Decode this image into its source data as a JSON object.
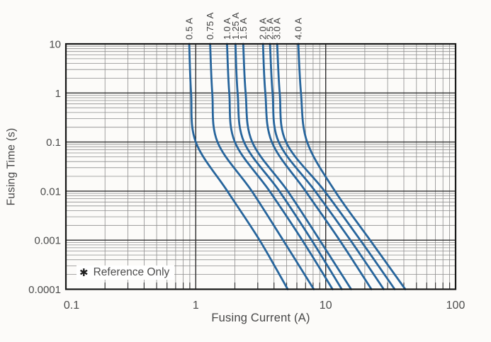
{
  "chart_data": {
    "type": "line",
    "title": "",
    "xlabel": "Fusing Current (A)",
    "ylabel": "Fusing Time (s)",
    "x_scale": "log",
    "y_scale": "log",
    "xlim": [
      0.1,
      100
    ],
    "ylim": [
      0.0001,
      10
    ],
    "x_tick_values": [
      0.1,
      1,
      10,
      100
    ],
    "x_tick_labels": [
      "0.1",
      "1",
      "10",
      "100"
    ],
    "y_tick_values": [
      10,
      1,
      0.1,
      0.01,
      0.001,
      0.0001
    ],
    "y_tick_labels": [
      "10",
      "1",
      "0.1",
      "0.01",
      "0.001",
      "0.0001"
    ],
    "grid": "major+minor, log decades, on",
    "legend_position": "rotated labels above plot at curve tops",
    "note_symbol": "✱",
    "note_text": "Reference Only",
    "curve_color": "#27659c",
    "times_s": [
      10,
      1,
      0.1,
      0.01,
      0.001,
      0.0001
    ],
    "series": [
      {
        "name": "0.5 A",
        "rating_A": 0.5,
        "current_A": [
          0.89,
          0.92,
          1.0,
          1.75,
          3.1,
          5.1
        ]
      },
      {
        "name": "0.75 A",
        "rating_A": 0.75,
        "current_A": [
          1.29,
          1.34,
          1.47,
          2.7,
          4.7,
          8.1
        ]
      },
      {
        "name": "1.0 A",
        "rating_A": 1.0,
        "current_A": [
          1.74,
          1.81,
          2.0,
          3.7,
          6.6,
          11.3
        ]
      },
      {
        "name": "1.25 A",
        "rating_A": 1.25,
        "current_A": [
          2.02,
          2.1,
          2.35,
          4.4,
          7.8,
          13.3
        ]
      },
      {
        "name": "1.5 A",
        "rating_A": 1.5,
        "current_A": [
          2.32,
          2.42,
          2.72,
          5.1,
          9.0,
          15.7
        ]
      },
      {
        "name": "2.0 A",
        "rating_A": 2.0,
        "current_A": [
          3.29,
          3.43,
          3.85,
          7.0,
          12.8,
          22.5
        ]
      },
      {
        "name": "2.5 A",
        "rating_A": 2.5,
        "current_A": [
          3.73,
          3.9,
          4.35,
          8.3,
          15.5,
          28.0
        ]
      },
      {
        "name": "3.0 A",
        "rating_A": 3.0,
        "current_A": [
          4.23,
          4.43,
          4.95,
          9.8,
          18.5,
          34.0
        ]
      },
      {
        "name": "4.0 A",
        "rating_A": 4.0,
        "current_A": [
          6.15,
          6.45,
          7.2,
          11.8,
          22.0,
          41.0
        ]
      }
    ]
  }
}
